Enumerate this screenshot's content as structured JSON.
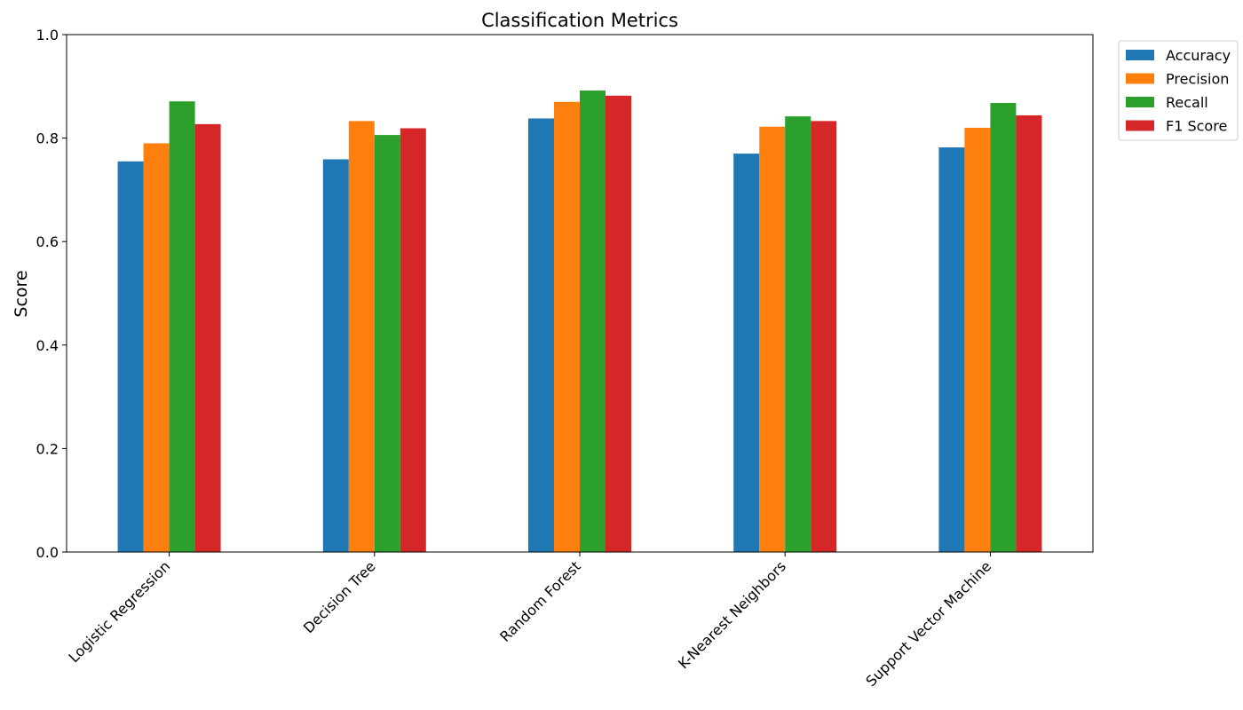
{
  "chart_data": {
    "type": "bar",
    "title": "Classification Metrics",
    "xlabel": "",
    "ylabel": "Score",
    "ylim": [
      0,
      1.0
    ],
    "yticks": [
      "0.0",
      "0.2",
      "0.4",
      "0.6",
      "0.8",
      "1.0"
    ],
    "categories": [
      "Logistic Regression",
      "Decision Tree",
      "Random Forest",
      "K-Nearest Neighbors",
      "Support Vector Machine"
    ],
    "series": [
      {
        "name": "Accuracy",
        "color": "#1f77b4",
        "values": [
          0.755,
          0.759,
          0.838,
          0.77,
          0.782
        ]
      },
      {
        "name": "Precision",
        "color": "#ff7f0e",
        "values": [
          0.79,
          0.833,
          0.87,
          0.822,
          0.82
        ]
      },
      {
        "name": "Recall",
        "color": "#2ca02c",
        "values": [
          0.871,
          0.806,
          0.892,
          0.842,
          0.868
        ]
      },
      {
        "name": "F1 Score",
        "color": "#d62728",
        "values": [
          0.827,
          0.819,
          0.882,
          0.833,
          0.844
        ]
      }
    ],
    "grid": false,
    "legend_position": "outside-top-right"
  }
}
